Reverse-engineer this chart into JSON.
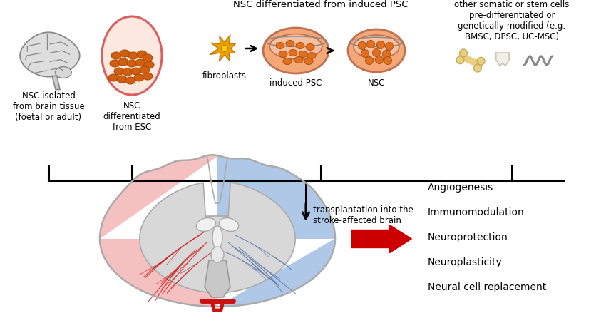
{
  "bg_color": "#ffffff",
  "text_color": "#000000",
  "label1": "NSC isolated\nfrom brain tissue\n(foetal or adult)",
  "label2": "NSC\ndifferentiated\nfrom ESC",
  "label3": "NSC differentiated from induced PSC",
  "label_fibro": "fibroblasts",
  "label_ipsc": "induced PSC",
  "label_nsc": "NSC",
  "label4": "other somatic or stem cells\npre-differentiated or\ngenetically modified (e.g.\nBMSC, DPSC, UC-MSC)",
  "label_transplant": "transplantation into the\nstroke-affected brain",
  "outcomes": [
    "Angiogenesis",
    "Immunomodulation",
    "Neuroprotection",
    "Neuroplasticity",
    "Neural cell replacement"
  ],
  "esc_fill": "#fde8e0",
  "esc_rim": "#d96060",
  "esc_cells_color": "#d06010",
  "fibro_color": "#e8a000",
  "petri_fill": "#f4a878",
  "petri_rim": "#c07050",
  "petri_top_fill": "#f8c0a0",
  "cell_dot_color": "#e07020",
  "bone_shaft": "#e8d080",
  "bone_edge": "#c8a860",
  "tooth_fill": "#f0f0e8",
  "tooth_edge": "#c8c8b0",
  "umbilical_color": "#888888",
  "brain_left_fill": "#f5c0c0",
  "brain_left_edge": "#cc5555",
  "brain_right_fill": "#b0c8e8",
  "brain_right_edge": "#5577aa",
  "brain_gray_fill": "#d8d8d8",
  "brain_gray_edge": "#aaaaaa",
  "brain_outer_edge": "#aaaaaa",
  "ventricle_fill": "#e8e8e8",
  "ventricle_edge": "#aaaaaa",
  "vessel_red": "#cc2222",
  "vessel_blue": "#5577aa",
  "artery_red": "#cc1111",
  "red_arrow": "#cc0000"
}
